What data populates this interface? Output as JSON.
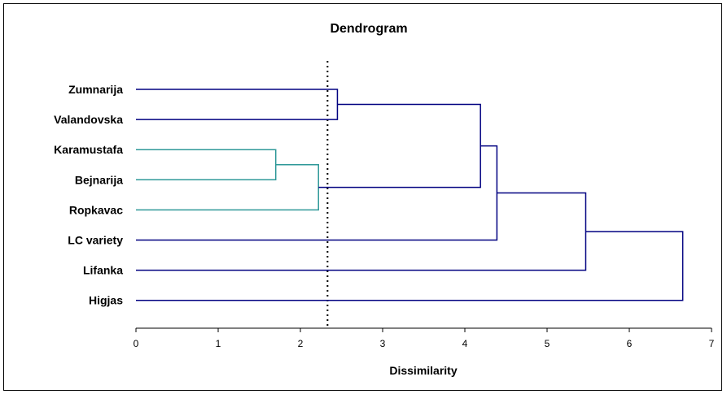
{
  "chart_data": {
    "type": "dendrogram",
    "title": "Dendrogram",
    "xlabel": "Dissimilarity",
    "xlim": [
      0,
      7
    ],
    "xticks": [
      "0",
      "1",
      "2",
      "3",
      "4",
      "5",
      "6",
      "7"
    ],
    "cut_line": 2.33,
    "leaves": [
      "Zumnarija",
      "Valandovska",
      "Karamustafa",
      "Bejnarija",
      "Ropkavac",
      "LC variety",
      "Lifanka",
      "Higjas"
    ],
    "merges": [
      {
        "id": "n1",
        "children": [
          "Karamustafa",
          "Bejnarija"
        ],
        "height": 1.7,
        "color": "#2e9898"
      },
      {
        "id": "n2",
        "children": [
          "n1",
          "Ropkavac"
        ],
        "height": 2.22,
        "color": "#2e9898"
      },
      {
        "id": "n3",
        "children": [
          "Zumnarija",
          "Valandovska"
        ],
        "height": 2.45,
        "color": "#000080"
      },
      {
        "id": "n4",
        "children": [
          "n3",
          "n2"
        ],
        "height": 4.19,
        "color": "#000080"
      },
      {
        "id": "n5",
        "children": [
          "n4",
          "LC variety"
        ],
        "height": 4.39,
        "color": "#000080"
      },
      {
        "id": "n6",
        "children": [
          "n5",
          "Lifanka"
        ],
        "height": 5.47,
        "color": "#000080"
      },
      {
        "id": "n7",
        "children": [
          "n6",
          "Higjas"
        ],
        "height": 6.65,
        "color": "#000080"
      }
    ]
  }
}
